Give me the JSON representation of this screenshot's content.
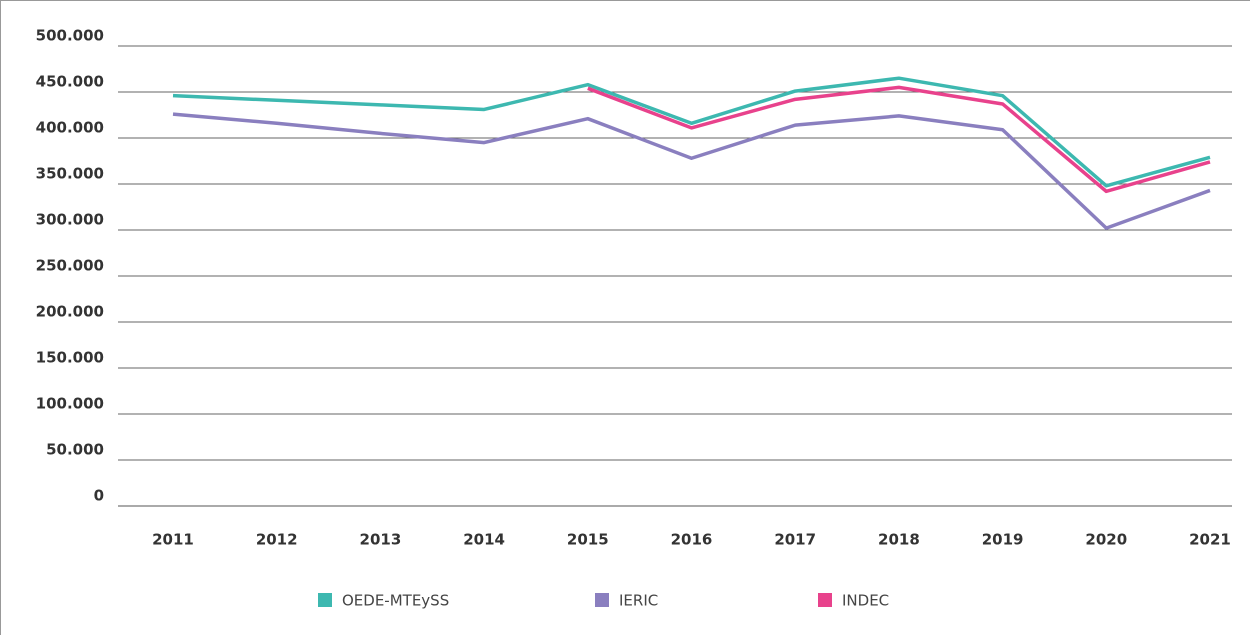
{
  "chart_data": {
    "type": "line",
    "categories": [
      "2011",
      "2012",
      "2013",
      "2014",
      "2015",
      "2016",
      "2017",
      "2018",
      "2019",
      "2020",
      "2021"
    ],
    "series": [
      {
        "name": "OEDE-MTEySS",
        "color": "#3db8b0",
        "values": [
          446000,
          441000,
          436000,
          431000,
          458000,
          416000,
          451000,
          465000,
          446000,
          348000,
          379000
        ]
      },
      {
        "name": "IERIC",
        "color": "#8a7fbf",
        "values": [
          426000,
          416000,
          405000,
          395000,
          421000,
          378000,
          414000,
          424000,
          409000,
          302000,
          343000
        ]
      },
      {
        "name": "INDEC",
        "color": "#e8428c",
        "values": [
          null,
          null,
          null,
          null,
          454000,
          411000,
          442000,
          455000,
          437000,
          342000,
          374000
        ]
      }
    ],
    "ylim": [
      0,
      500000
    ],
    "yticks": [
      0,
      {
        "value": 50000,
        "label": "50.000"
      },
      {
        "value": 100000,
        "label": "100.000"
      },
      {
        "value": 150000,
        "label": "150.000"
      },
      {
        "value": 200000,
        "label": "200.000"
      },
      {
        "value": 250000,
        "label": "250.000"
      },
      {
        "value": 300000,
        "label": "300.000"
      },
      {
        "value": 350000,
        "label": "350.000"
      },
      {
        "value": 400000,
        "label": "400.000"
      },
      {
        "value": 450000,
        "label": "450.000"
      },
      {
        "value": 500000,
        "label": "500.000"
      }
    ],
    "grid": true
  }
}
